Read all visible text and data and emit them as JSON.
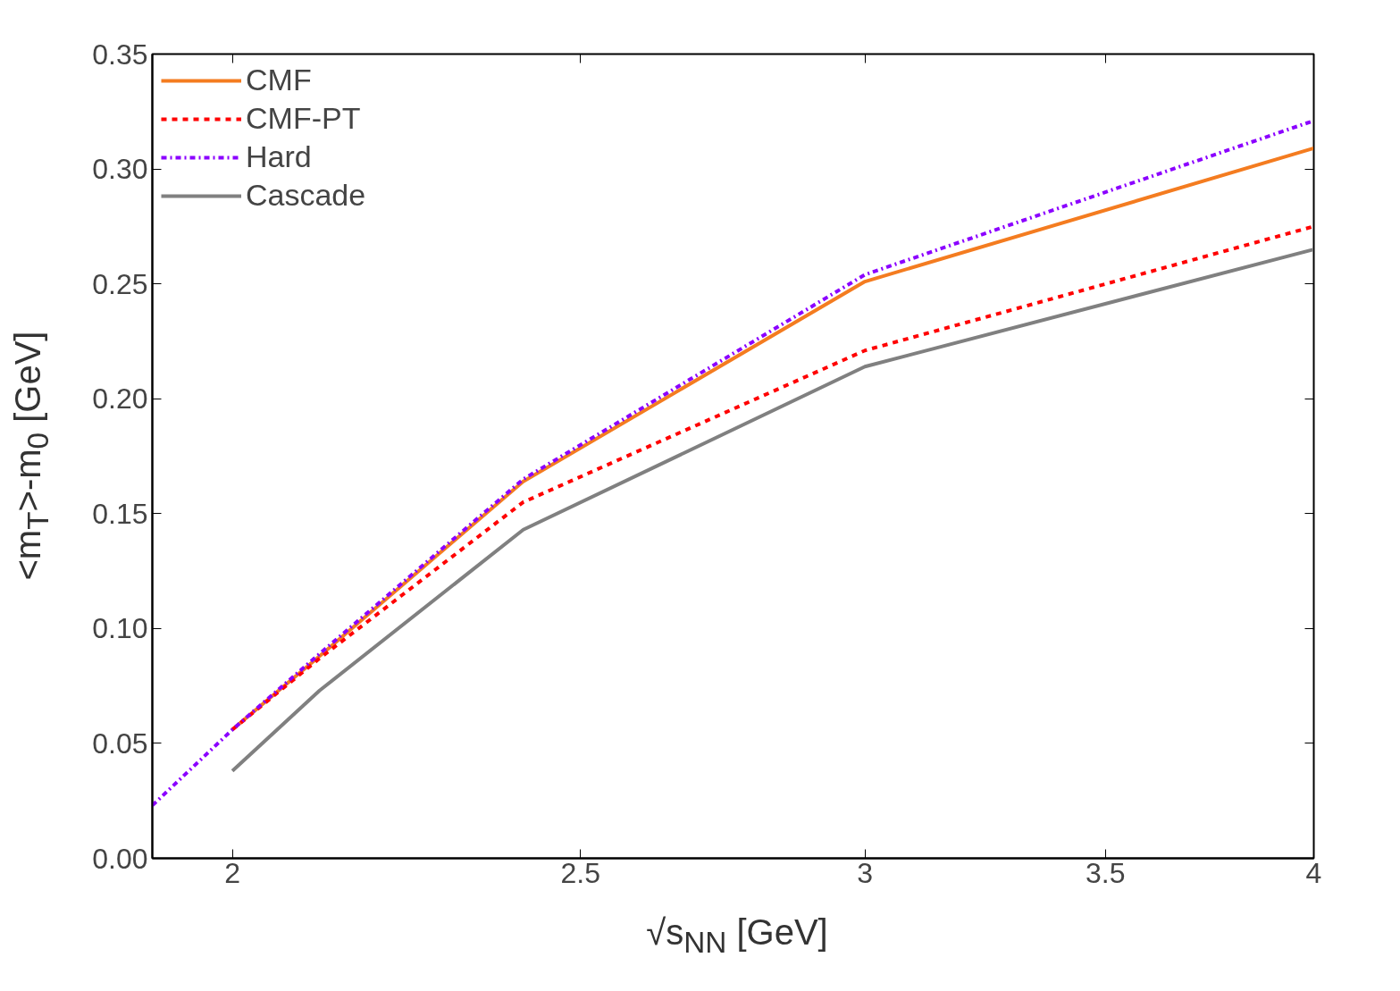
{
  "chart_data": {
    "type": "line",
    "xlabel": "√s$_{NN}$ [GeV]",
    "ylabel": "<m$_{T}$>-m$_{0}$ [GeV]",
    "log": "x",
    "xlim": [
      1.9,
      4
    ],
    "xticks": [
      2,
      2.5,
      3,
      3.5,
      4
    ],
    "ylim": [
      0,
      0.35
    ],
    "yticks": [
      {
        "value": 0,
        "label": "0.00"
      },
      {
        "value": 0.05,
        "label": "0.05"
      },
      {
        "value": 0.1,
        "label": "0.10"
      },
      {
        "value": 0.15,
        "label": "0.15"
      },
      {
        "value": 0.2,
        "label": "0.20"
      },
      {
        "value": 0.25,
        "label": "0.25"
      },
      {
        "value": 0.3,
        "label": "0.30"
      },
      {
        "value": 0.35,
        "label": "0.35"
      }
    ],
    "grid": false,
    "legend": "top left",
    "series": [
      {
        "name": "CMF",
        "color": "#f47c20",
        "line_style": "solid",
        "x": [
          2.0,
          2.115,
          2.41,
          3.0,
          4.0
        ],
        "values": [
          0.056,
          0.088,
          0.164,
          0.251,
          0.309
        ]
      },
      {
        "name": "CMF-PT",
        "color": "#ff0000",
        "line_style": "dashed",
        "x": [
          2.0,
          2.115,
          2.41,
          3.0,
          4.0
        ],
        "values": [
          0.056,
          0.087,
          0.155,
          0.221,
          0.275
        ]
      },
      {
        "name": "Hard",
        "color": "#8b00ff",
        "line_style": "dashdot",
        "x": [
          1.9,
          2.0,
          2.115,
          2.41,
          3.0,
          4.0
        ],
        "values": [
          0.023,
          0.056,
          0.089,
          0.165,
          0.254,
          0.321
        ]
      },
      {
        "name": "Cascade",
        "color": "#808080",
        "line_style": "solid",
        "x": [
          2.0,
          2.115,
          2.41,
          3.0,
          4.0
        ],
        "values": [
          0.038,
          0.073,
          0.143,
          0.214,
          0.265
        ]
      }
    ]
  }
}
